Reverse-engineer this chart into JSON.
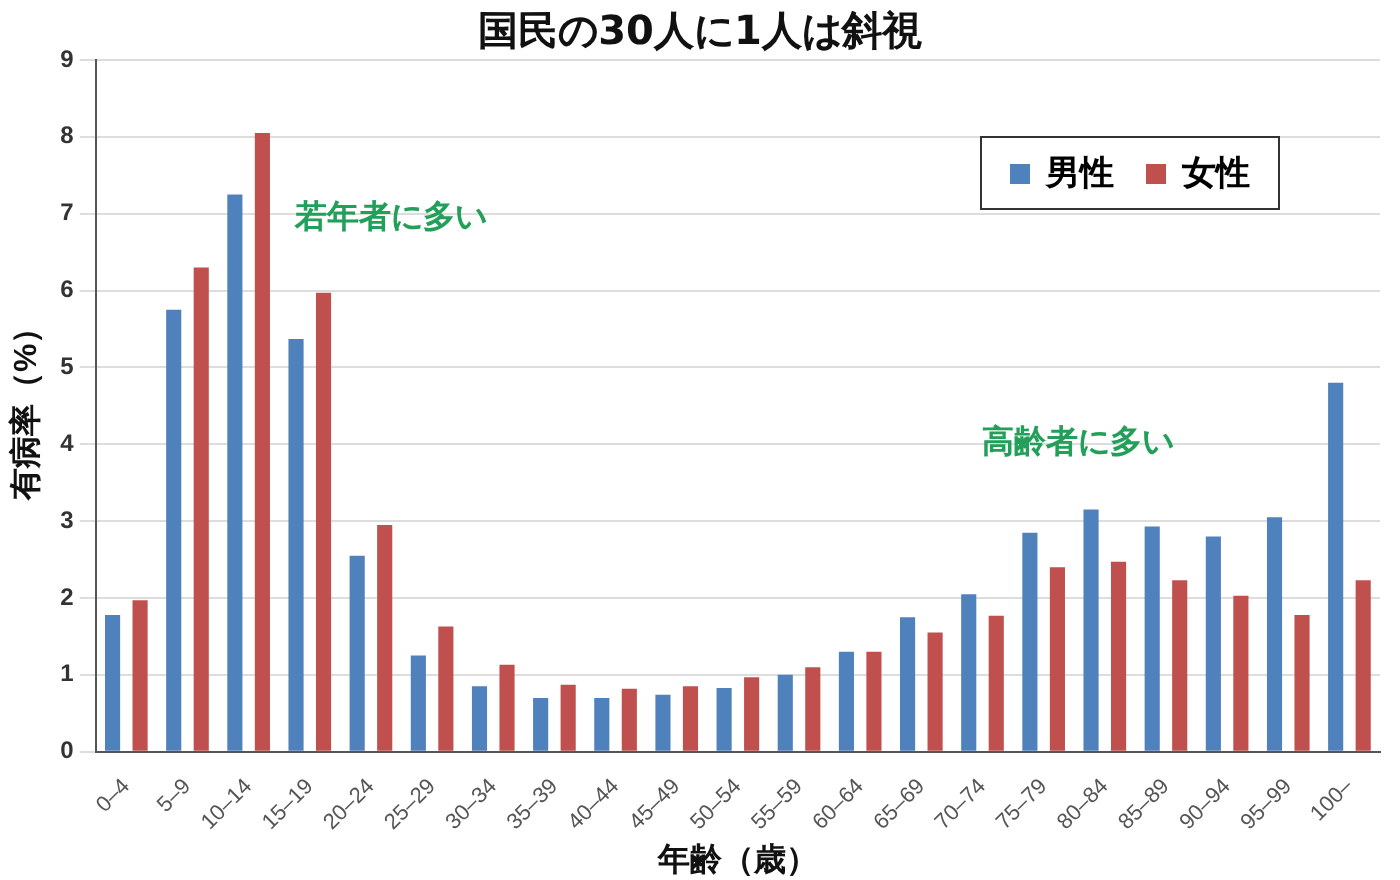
{
  "chart_data": {
    "type": "bar",
    "title": "国民の30人に1人は斜視",
    "xlabel": "年齢（歳）",
    "ylabel": "有病率（%）",
    "categories": [
      "0–4",
      "5–9",
      "10–14",
      "15–19",
      "20–24",
      "25–29",
      "30–34",
      "35–39",
      "40–44",
      "45–49",
      "50–54",
      "55–59",
      "60–64",
      "65–69",
      "70–74",
      "75–79",
      "80–84",
      "85–89",
      "90–94",
      "95–99",
      "100–"
    ],
    "series": [
      {
        "name": "男性",
        "color": "#4f81bd",
        "values": [
          1.78,
          5.75,
          7.25,
          5.37,
          2.55,
          1.25,
          0.85,
          0.7,
          0.7,
          0.74,
          0.83,
          1.0,
          1.3,
          1.75,
          2.05,
          2.85,
          3.15,
          2.93,
          2.8,
          3.05,
          4.8
        ]
      },
      {
        "name": "女性",
        "color": "#c0504d",
        "values": [
          1.97,
          6.3,
          8.05,
          5.97,
          2.95,
          1.63,
          1.13,
          0.87,
          0.82,
          0.85,
          0.97,
          1.1,
          1.3,
          1.55,
          1.77,
          2.4,
          2.47,
          2.23,
          2.03,
          1.78,
          2.23
        ]
      }
    ],
    "ylim": [
      0,
      9
    ],
    "yticks": [
      0,
      1,
      2,
      3,
      4,
      5,
      6,
      7,
      8,
      9
    ],
    "grid": "y",
    "legend": "top right",
    "annotations": [
      "若年者に多い",
      "高齢者に多い"
    ]
  }
}
